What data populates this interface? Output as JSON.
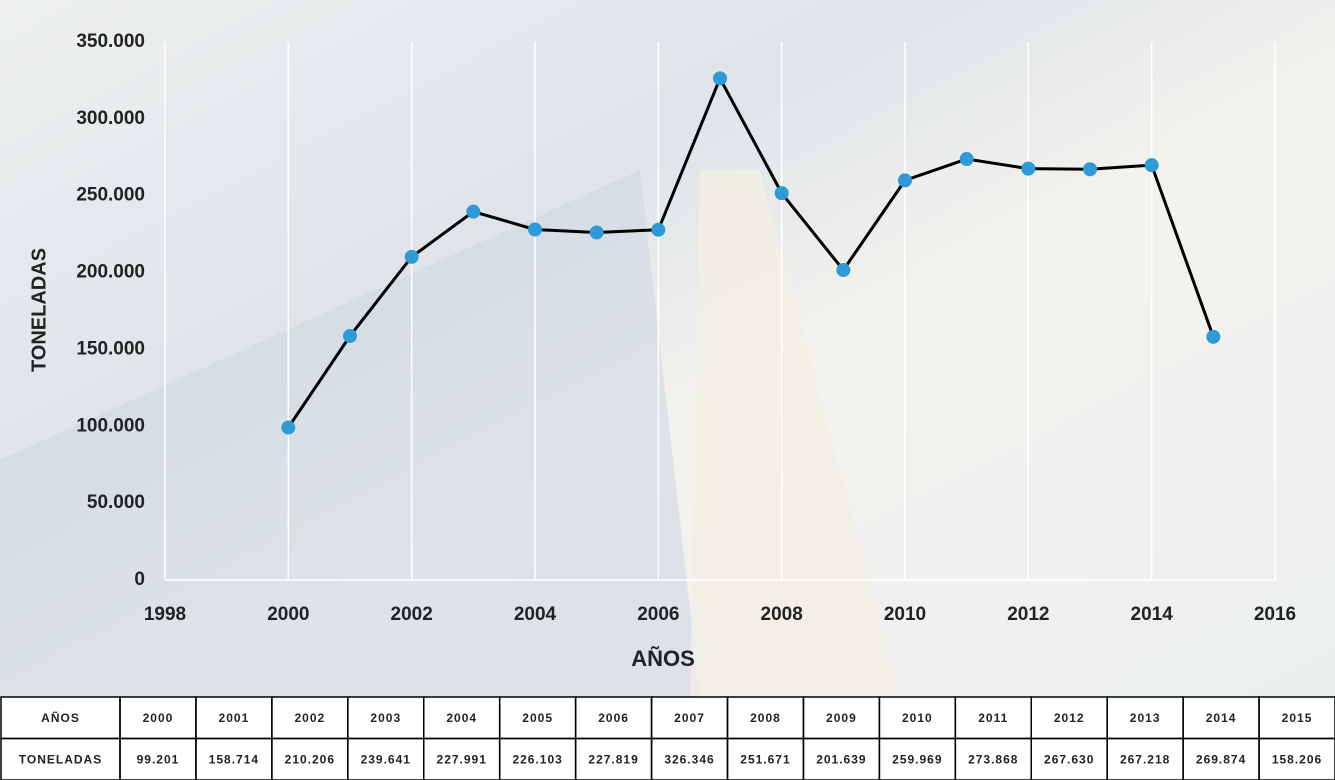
{
  "chart_data": {
    "type": "line",
    "xlabel": "AÑOS",
    "ylabel": "TONELADAS",
    "x": [
      2000,
      2001,
      2002,
      2003,
      2004,
      2005,
      2006,
      2007,
      2008,
      2009,
      2010,
      2011,
      2012,
      2013,
      2014,
      2015
    ],
    "values": [
      99201,
      158714,
      210206,
      239641,
      227991,
      226103,
      227819,
      326346,
      251671,
      201639,
      259969,
      273868,
      267630,
      267218,
      269874,
      158206
    ],
    "value_labels": [
      "99.201",
      "158.714",
      "210.206",
      "239.641",
      "227.991",
      "226.103",
      "227.819",
      "326.346",
      "251.671",
      "201.639",
      "259.969",
      "273.868",
      "267.630",
      "267.218",
      "269.874",
      "158.206"
    ],
    "line_color": "#000000",
    "marker_color": "#2e9bd6",
    "xlim": [
      1998,
      2016
    ],
    "xticks": [
      1998,
      2000,
      2002,
      2004,
      2006,
      2008,
      2010,
      2012,
      2014,
      2016
    ],
    "ylim": [
      0,
      350000
    ],
    "yticks": [
      0,
      {
        "value": 50000,
        "label": "50.000"
      },
      {
        "value": 100000,
        "label": "100.000"
      },
      {
        "value": 150000,
        "label": "150.000"
      },
      {
        "value": 200000,
        "label": "200.000"
      },
      {
        "value": 250000,
        "label": "250.000"
      },
      {
        "value": 300000,
        "label": "300.000"
      },
      {
        "value": 350000,
        "label": "350.000"
      }
    ],
    "grid": true
  }
}
